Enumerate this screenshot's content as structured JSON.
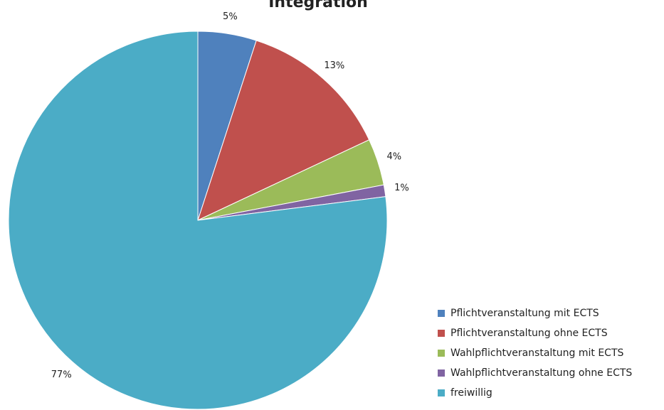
{
  "chart_data": {
    "type": "pie",
    "title": "Integration",
    "categories": [
      "Pflichtveranstaltung mit ECTS",
      "Pflichtveranstaltung ohne ECTS",
      "Wahlpflichtveranstaltung mit ECTS",
      "Wahlpflichtveranstaltung ohne ECTS",
      "freiwillig"
    ],
    "values": [
      5,
      13,
      4,
      1,
      77
    ],
    "colors": [
      "#4f81bd",
      "#c0504d",
      "#9bbb59",
      "#8064a2",
      "#4bacc6"
    ],
    "legend": "bottom-right"
  }
}
